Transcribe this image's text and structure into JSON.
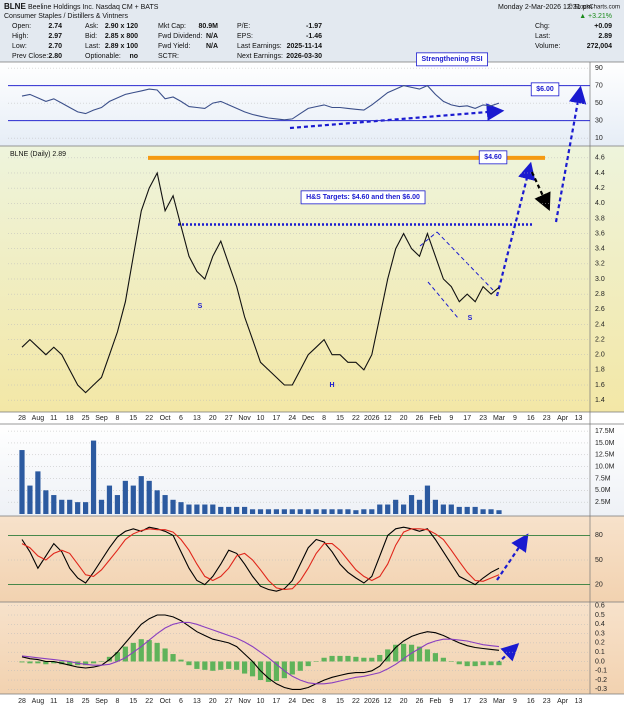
{
  "header": {
    "symbol": "BLNE",
    "name": "Beeline Holdings Inc. Nasdaq CM + BATS",
    "date": "Monday 2-Mar-2026 12:31 pm",
    "credit": "© StockCharts.com",
    "industry": "Consumer Staples / Distillers & Vintners",
    "change_pct": "▲ +3.21%",
    "stats": [
      [
        [
          "Open:",
          "2.74"
        ],
        [
          "High:",
          "2.97"
        ],
        [
          "Low:",
          "2.70"
        ],
        [
          "Prev Close:",
          "2.80"
        ]
      ],
      [
        [
          "Ask:",
          "2.90 x 120"
        ],
        [
          "Bid:",
          "2.85 x 800"
        ],
        [
          "Last:",
          "2.89 x 100"
        ],
        [
          "Optionable:",
          "no"
        ]
      ],
      [
        [
          "Mkt Cap:",
          "80.9M"
        ],
        [
          "Fwd Dividend:",
          "N/A"
        ],
        [
          "Fwd Yield:",
          "N/A"
        ],
        [
          "SCTR:"
        ]
      ],
      [
        [
          "P/E:",
          "-1.97"
        ],
        [
          "EPS:",
          "-1.46"
        ],
        [
          "Last Earnings:",
          "2025-11-14"
        ],
        [
          "Next Earnings:",
          "2026-03-30"
        ]
      ],
      [
        [
          "Chg:",
          "+0.09"
        ],
        [
          "Last:",
          "2.89"
        ],
        [
          "Volume:",
          "272,004"
        ]
      ]
    ]
  },
  "chart_data": [
    {
      "type": "line",
      "ylim": [
        1,
        97
      ],
      "yticks": [
        90,
        70,
        50,
        30,
        10
      ],
      "grid": true,
      "bands": [
        70,
        30
      ],
      "band_color": "#2a2ad0",
      "series": [
        {
          "color": "#3b4f8a",
          "values": [
            58,
            60,
            56,
            52,
            55,
            50,
            45,
            40,
            38,
            42,
            45,
            52,
            56,
            60,
            62,
            64,
            66,
            65,
            55,
            57,
            52,
            46,
            45,
            44,
            50,
            52,
            48,
            44,
            40,
            37,
            35,
            33,
            32,
            31,
            32,
            38,
            44,
            46,
            48,
            45,
            45,
            44,
            43,
            42,
            48,
            55,
            62,
            66,
            70,
            68,
            66,
            70,
            60,
            52,
            48,
            46,
            47,
            44,
            48,
            47,
            50,
            null,
            null,
            null,
            null,
            null,
            null,
            null,
            null,
            null,
            null,
            null
          ]
        }
      ],
      "annotations": [
        {
          "text": "Strengthening RSI"
        },
        {
          "text": "$6.00"
        }
      ]
    },
    {
      "type": "line",
      "ylim": [
        1.27,
        4.73
      ],
      "yticks": [
        1.4,
        1.6,
        1.8,
        {
          "value": 2,
          "label": "2.0"
        },
        2.2,
        2.4,
        2.6,
        2.8,
        {
          "value": 3,
          "label": "3.0"
        },
        3.2,
        3.4,
        3.6,
        3.8,
        {
          "value": 4,
          "label": "4.0"
        },
        4.2,
        4.4,
        4.6
      ],
      "grid": true,
      "categories": [
        "28",
        null,
        "Aug",
        null,
        "11",
        null,
        "18",
        null,
        "25",
        null,
        "Sep",
        null,
        "8",
        null,
        "15",
        null,
        "22",
        null,
        "Oct",
        null,
        "6",
        null,
        "13",
        null,
        "20",
        null,
        "27",
        null,
        "Nov",
        null,
        "10",
        null,
        "17",
        null,
        "24",
        null,
        "Dec",
        null,
        "8",
        null,
        "15",
        null,
        "22",
        null,
        "2026",
        null,
        "12",
        null,
        "20",
        null,
        "26",
        null,
        "Feb",
        null,
        "9",
        null,
        "17",
        null,
        "23",
        null,
        "Mar",
        null,
        "9",
        null,
        "16",
        null,
        "23",
        null,
        "Apr",
        null,
        "13",
        null
      ],
      "series": [
        {
          "name": "BLNE (Daily) 2.89",
          "color": "#111111",
          "values": [
            2.1,
            2.2,
            2.1,
            2.0,
            2.1,
            2.0,
            1.8,
            1.6,
            1.5,
            1.6,
            1.7,
            2.0,
            2.3,
            2.7,
            3.3,
            3.9,
            4.2,
            4.4,
            3.9,
            4.1,
            3.7,
            3.3,
            3.1,
            3.0,
            3.3,
            3.5,
            3.2,
            2.9,
            2.5,
            2.2,
            1.9,
            1.8,
            1.7,
            1.6,
            1.6,
            1.8,
            2.0,
            2.1,
            2.2,
            2.0,
            2.0,
            1.9,
            1.9,
            1.8,
            2.0,
            2.5,
            3.0,
            3.4,
            3.6,
            3.4,
            3.3,
            3.6,
            3.3,
            3.0,
            2.9,
            2.7,
            2.8,
            2.7,
            2.9,
            2.8,
            2.89,
            null,
            null,
            null,
            null,
            null,
            null,
            null,
            null,
            null,
            null,
            null
          ]
        }
      ],
      "levels": [
        {
          "value": 4.6,
          "color": "#f59a12",
          "width": 4
        },
        {
          "value": 3.72,
          "color": "#1a1ad0",
          "width": 2.5,
          "dash": true
        }
      ],
      "annotations": [
        {
          "text": "$4.60"
        },
        {
          "text": "H&S Targets: $4.60 and then $6.00"
        },
        {
          "text": "S"
        },
        {
          "text": "H"
        },
        {
          "text": "S"
        }
      ]
    },
    {
      "type": "bar",
      "ylim": [
        0,
        19
      ],
      "yticks": [
        {
          "value": 2.5,
          "label": "2.5M"
        },
        {
          "value": 5,
          "label": "5.0M"
        },
        {
          "value": 7.5,
          "label": "7.5M"
        },
        {
          "value": 10,
          "label": "10.0M"
        },
        {
          "value": 12.5,
          "label": "12.5M"
        },
        {
          "value": 15,
          "label": "15.0M"
        },
        {
          "value": 17.5,
          "label": "17.5M"
        }
      ],
      "grid": true,
      "series": [
        {
          "color": "#2c5aa0",
          "values": [
            13.5,
            6,
            9,
            5,
            4,
            3,
            3,
            2.5,
            2.5,
            15.5,
            3,
            6,
            4,
            7,
            6,
            8,
            7,
            5,
            4,
            3,
            2.5,
            2,
            2,
            2,
            2,
            1.5,
            1.5,
            1.5,
            1.5,
            1,
            1,
            1,
            1,
            1,
            1,
            1,
            1,
            1,
            1,
            1,
            1,
            1,
            0.8,
            1,
            1,
            2,
            2,
            3,
            2,
            4,
            3,
            6,
            3,
            2,
            2,
            1.5,
            1.5,
            1.5,
            1,
            1,
            0.8,
            null,
            null,
            null,
            null,
            null,
            null,
            null,
            null,
            null,
            null,
            null
          ]
        }
      ]
    },
    {
      "type": "line",
      "ylim": [
        0,
        100
      ],
      "yticks": [
        80,
        50,
        20
      ],
      "grid": true,
      "bands": [
        80,
        20
      ],
      "band_color": "#2f7d3a",
      "series": [
        {
          "color": "#000000",
          "values": [
            75,
            60,
            40,
            55,
            70,
            60,
            40,
            28,
            22,
            35,
            50,
            65,
            78,
            85,
            88,
            85,
            90,
            88,
            85,
            80,
            60,
            40,
            25,
            20,
            30,
            45,
            62,
            58,
            45,
            30,
            18,
            14,
            12,
            15,
            25,
            45,
            65,
            75,
            72,
            60,
            45,
            35,
            28,
            22,
            30,
            55,
            80,
            88,
            90,
            88,
            85,
            88,
            75,
            60,
            45,
            30,
            25,
            20,
            28,
            35,
            40,
            null,
            null,
            null,
            null,
            null,
            null,
            null,
            null,
            null,
            null,
            null
          ]
        },
        {
          "color": "#e0261b",
          "values": [
            70,
            65,
            55,
            50,
            58,
            62,
            58,
            45,
            32,
            30,
            38,
            50,
            62,
            75,
            82,
            86,
            88,
            87,
            87,
            84,
            75,
            62,
            45,
            30,
            25,
            30,
            40,
            55,
            58,
            50,
            38,
            25,
            16,
            14,
            15,
            25,
            40,
            58,
            70,
            70,
            62,
            50,
            38,
            30,
            25,
            30,
            45,
            68,
            84,
            88,
            88,
            87,
            82,
            75,
            62,
            48,
            35,
            25,
            24,
            28,
            32,
            null,
            null,
            null,
            null,
            null,
            null,
            null,
            null,
            null,
            null,
            null
          ]
        }
      ]
    },
    {
      "type": "line",
      "ylim": [
        -0.35,
        0.64
      ],
      "yticks": [
        0.6,
        0.5,
        0.4,
        0.3,
        0.2,
        0.1,
        {
          "value": 0,
          "label": "0.0"
        },
        -0.1,
        -0.2,
        -0.3
      ],
      "grid": true,
      "categories": [
        "28",
        null,
        "Aug",
        null,
        "11",
        null,
        "18",
        null,
        "25",
        null,
        "Sep",
        null,
        "8",
        null,
        "15",
        null,
        "22",
        null,
        "Oct",
        null,
        "6",
        null,
        "13",
        null,
        "20",
        null,
        "27",
        null,
        "Nov",
        null,
        "10",
        null,
        "17",
        null,
        "24",
        null,
        "Dec",
        null,
        "8",
        null,
        "15",
        null,
        "22",
        null,
        "2026",
        null,
        "12",
        null,
        "20",
        null,
        "26",
        null,
        "Feb",
        null,
        "9",
        null,
        "17",
        null,
        "23",
        null,
        "Mar",
        null,
        "9",
        null,
        "16",
        null,
        "23",
        null,
        "Apr",
        null,
        "13",
        null
      ],
      "series": [
        {
          "type": "bar",
          "color": "#5fb35a",
          "values": [
            -0.01,
            -0.02,
            -0.02,
            -0.03,
            -0.02,
            -0.03,
            -0.04,
            -0.04,
            -0.04,
            -0.02,
            0.0,
            0.05,
            0.1,
            0.16,
            0.2,
            0.24,
            0.23,
            0.2,
            0.14,
            0.08,
            0.02,
            -0.04,
            -0.08,
            -0.09,
            -0.1,
            -0.09,
            -0.08,
            -0.09,
            -0.13,
            -0.16,
            -0.2,
            -0.22,
            -0.21,
            -0.18,
            -0.14,
            -0.1,
            -0.05,
            0.0,
            0.04,
            0.06,
            0.06,
            0.06,
            0.05,
            0.04,
            0.04,
            0.07,
            0.13,
            0.18,
            0.19,
            0.18,
            0.16,
            0.13,
            0.09,
            0.04,
            0.0,
            -0.03,
            -0.05,
            -0.05,
            -0.04,
            -0.04,
            -0.04,
            null,
            null,
            null,
            null,
            null,
            null,
            null,
            null,
            null,
            null,
            null
          ]
        },
        {
          "color": "#000000",
          "values": [
            0.05,
            0.03,
            0.02,
            0.0,
            0.0,
            -0.02,
            -0.04,
            -0.06,
            -0.07,
            -0.06,
            -0.04,
            0.02,
            0.1,
            0.2,
            0.3,
            0.4,
            0.46,
            0.5,
            0.5,
            0.48,
            0.44,
            0.38,
            0.32,
            0.28,
            0.24,
            0.22,
            0.2,
            0.16,
            0.08,
            0.0,
            -0.1,
            -0.18,
            -0.24,
            -0.28,
            -0.3,
            -0.3,
            -0.28,
            -0.24,
            -0.2,
            -0.17,
            -0.15,
            -0.13,
            -0.12,
            -0.12,
            -0.1,
            -0.05,
            0.05,
            0.15,
            0.22,
            0.27,
            0.3,
            0.32,
            0.31,
            0.28,
            0.24,
            0.2,
            0.17,
            0.15,
            0.14,
            0.13,
            0.12,
            null,
            null,
            null,
            null,
            null,
            null,
            null,
            null,
            null,
            null,
            null
          ]
        },
        {
          "color": "#8a3fc0",
          "values": [
            0.06,
            0.05,
            0.04,
            0.03,
            0.02,
            0.01,
            0.0,
            -0.02,
            -0.03,
            -0.04,
            -0.04,
            -0.03,
            0.0,
            0.04,
            0.1,
            0.16,
            0.23,
            0.3,
            0.36,
            0.4,
            0.42,
            0.42,
            0.4,
            0.37,
            0.34,
            0.31,
            0.28,
            0.25,
            0.21,
            0.16,
            0.1,
            0.04,
            -0.03,
            -0.1,
            -0.16,
            -0.2,
            -0.23,
            -0.24,
            -0.24,
            -0.23,
            -0.21,
            -0.19,
            -0.17,
            -0.16,
            -0.14,
            -0.12,
            -0.08,
            -0.03,
            0.03,
            0.09,
            0.14,
            0.19,
            0.22,
            0.24,
            0.24,
            0.23,
            0.22,
            0.2,
            0.18,
            0.17,
            0.16,
            null,
            null,
            null,
            null,
            null,
            null,
            null,
            null,
            null,
            null,
            null
          ]
        }
      ]
    }
  ]
}
